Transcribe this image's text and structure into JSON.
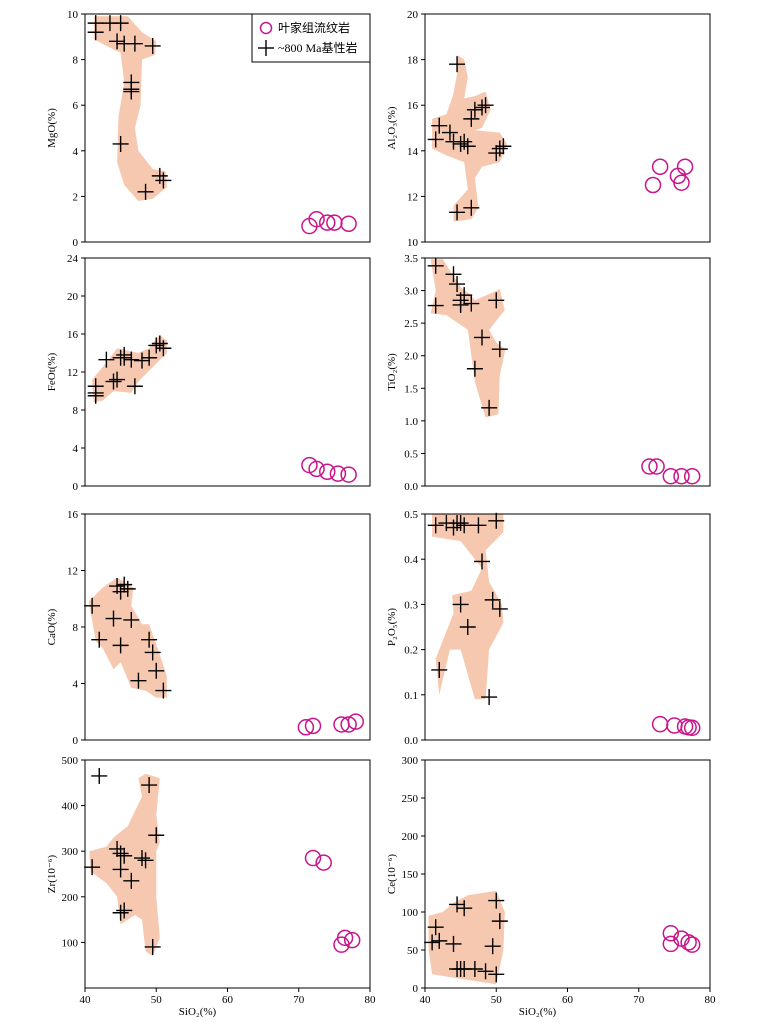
{
  "legend": {
    "felsic": "叶家组流纹岩",
    "mafic": "~800 Ma基性岩"
  },
  "colors": {
    "felsic": "#c9148c",
    "mafic": "#000000",
    "field": "#f7c8b0"
  },
  "chart_data": [
    {
      "type": "scatter",
      "ylabel": "MgO(%)",
      "xlim": [
        40,
        80
      ],
      "ylim": [
        0,
        10
      ],
      "xticks": [],
      "yticks": [
        0,
        2,
        4,
        6,
        8,
        10
      ],
      "series": [
        {
          "name": "~800 Ma基性岩",
          "marker": "plus",
          "x": [
            41.5,
            41.5,
            43.5,
            44.5,
            45.0,
            45.0,
            45.5,
            46.5,
            46.5,
            46.5,
            47.0,
            48.5,
            49.5,
            50.5,
            51.0
          ],
          "y": [
            9.6,
            9.2,
            9.6,
            8.8,
            9.6,
            4.3,
            8.7,
            6.6,
            7.0,
            6.7,
            8.7,
            2.2,
            8.6,
            2.9,
            2.7
          ]
        },
        {
          "name": "叶家组流纹岩",
          "marker": "circle",
          "x": [
            71.5,
            72.5,
            74.0,
            75.0,
            77.0
          ],
          "y": [
            0.7,
            1.0,
            0.85,
            0.85,
            0.8
          ]
        }
      ]
    },
    {
      "type": "scatter",
      "ylabel": "Al₂O₃(%)",
      "xlim": [
        40,
        80
      ],
      "ylim": [
        10,
        20
      ],
      "xticks": [],
      "yticks": [
        10,
        12,
        14,
        16,
        18,
        20
      ],
      "series": [
        {
          "name": "~800 Ma基性岩",
          "marker": "plus",
          "x": [
            41.5,
            42.0,
            43.5,
            44.0,
            44.5,
            44.5,
            45.0,
            45.5,
            46.0,
            46.5,
            46.5,
            47.0,
            48.0,
            48.5,
            50.0,
            50.5,
            51.0
          ],
          "y": [
            14.5,
            15.1,
            14.8,
            14.4,
            11.3,
            17.8,
            14.3,
            14.4,
            14.2,
            11.5,
            15.4,
            15.8,
            15.9,
            16.0,
            13.9,
            14.1,
            14.2
          ]
        },
        {
          "name": "叶家组流纹岩",
          "marker": "circle",
          "x": [
            72.0,
            73.0,
            75.5,
            76.0,
            76.5
          ],
          "y": [
            12.5,
            13.3,
            12.9,
            12.6,
            13.3
          ]
        }
      ]
    },
    {
      "type": "scatter",
      "ylabel": "FeOt(%)",
      "xlim": [
        40,
        80
      ],
      "ylim": [
        0,
        24
      ],
      "xticks": [],
      "yticks": [
        0,
        4,
        8,
        12,
        16,
        20,
        24
      ],
      "series": [
        {
          "name": "~800 Ma基性岩",
          "marker": "plus",
          "x": [
            41.5,
            41.5,
            41.5,
            43.0,
            44.0,
            44.5,
            45.0,
            45.5,
            45.5,
            46.5,
            47.0,
            48.0,
            49.0,
            50.0,
            50.5,
            51.0
          ],
          "y": [
            10.5,
            9.8,
            9.5,
            13.3,
            11.0,
            11.2,
            13.5,
            13.8,
            13.5,
            13.3,
            10.5,
            13.2,
            13.5,
            14.8,
            15.0,
            14.5
          ]
        },
        {
          "name": "叶家组流纹岩",
          "marker": "circle",
          "x": [
            71.5,
            72.5,
            74.0,
            75.5,
            77.0
          ],
          "y": [
            2.2,
            1.8,
            1.5,
            1.3,
            1.2
          ]
        }
      ]
    },
    {
      "type": "scatter",
      "ylabel": "TiO₂(%)",
      "xlim": [
        40,
        80
      ],
      "ylim": [
        0.0,
        3.5
      ],
      "xticks": [],
      "yticks": [
        0.0,
        0.5,
        1.0,
        1.5,
        2.0,
        2.5,
        3.0,
        3.5
      ],
      "series": [
        {
          "name": "~800 Ma基性岩",
          "marker": "plus",
          "x": [
            41.5,
            41.5,
            44.0,
            44.5,
            45.0,
            45.0,
            45.5,
            46.5,
            47.0,
            48.0,
            49.0,
            50.0,
            50.5
          ],
          "y": [
            3.38,
            2.77,
            3.25,
            3.1,
            2.85,
            2.78,
            2.93,
            2.8,
            1.8,
            2.28,
            1.2,
            2.85,
            2.1
          ]
        },
        {
          "name": "叶家组流纹岩",
          "marker": "circle",
          "x": [
            71.5,
            72.5,
            74.5,
            76.0,
            77.5
          ],
          "y": [
            0.3,
            0.3,
            0.15,
            0.15,
            0.15
          ]
        }
      ]
    },
    {
      "type": "scatter",
      "ylabel": "CaO(%)",
      "xlim": [
        40,
        80
      ],
      "ylim": [
        0,
        16
      ],
      "xticks": [],
      "yticks": [
        0,
        4,
        8,
        12,
        16
      ],
      "series": [
        {
          "name": "~800 Ma基性岩",
          "marker": "plus",
          "x": [
            41.0,
            42.0,
            44.0,
            44.5,
            45.0,
            45.0,
            45.5,
            46.0,
            46.5,
            47.5,
            49.0,
            49.5,
            50.0,
            51.0
          ],
          "y": [
            9.5,
            7.1,
            8.6,
            10.9,
            6.7,
            10.5,
            11.0,
            10.7,
            8.5,
            4.2,
            7.1,
            6.2,
            4.9,
            3.5
          ]
        },
        {
          "name": "叶家组流纹岩",
          "marker": "circle",
          "x": [
            71.0,
            72.0,
            76.0,
            77.0,
            78.0
          ],
          "y": [
            0.9,
            1.0,
            1.1,
            1.1,
            1.3
          ]
        }
      ]
    },
    {
      "type": "scatter",
      "ylabel": "P₂O₅(%)",
      "xlim": [
        40,
        80
      ],
      "ylim": [
        0.0,
        0.5
      ],
      "xticks": [],
      "yticks": [
        0.0,
        0.1,
        0.2,
        0.3,
        0.4,
        0.5
      ],
      "series": [
        {
          "name": "~800 Ma基性岩",
          "marker": "plus",
          "x": [
            41.5,
            42.0,
            43.0,
            44.0,
            44.5,
            45.0,
            45.0,
            45.5,
            46.0,
            47.5,
            48.0,
            49.0,
            49.5,
            50.0,
            50.5
          ],
          "y": [
            0.475,
            0.155,
            0.48,
            0.47,
            0.48,
            0.3,
            0.48,
            0.475,
            0.25,
            0.475,
            0.395,
            0.095,
            0.31,
            0.485,
            0.29
          ]
        },
        {
          "name": "叶家组流纹岩",
          "marker": "circle",
          "x": [
            73.0,
            75.0,
            76.5,
            77.0,
            77.5
          ],
          "y": [
            0.035,
            0.032,
            0.03,
            0.028,
            0.027
          ]
        }
      ]
    },
    {
      "type": "scatter",
      "ylabel": "Zr(10⁻⁶)",
      "xlabel": "SiO₂(%)",
      "xlim": [
        40,
        80
      ],
      "ylim": [
        0,
        500
      ],
      "xticks": [
        40,
        50,
        60,
        70,
        80
      ],
      "yticks": [
        100,
        200,
        300,
        400,
        500
      ],
      "series": [
        {
          "name": "~800 Ma基性岩",
          "marker": "plus",
          "x": [
            41.0,
            42.0,
            44.5,
            45.0,
            45.0,
            45.0,
            45.5,
            45.5,
            46.5,
            48.0,
            48.5,
            49.0,
            49.5,
            50.0
          ],
          "y": [
            265,
            465,
            305,
            295,
            260,
            165,
            290,
            170,
            235,
            285,
            280,
            445,
            90,
            335
          ]
        },
        {
          "name": "叶家组流纹岩",
          "marker": "circle",
          "x": [
            72.0,
            73.5,
            76.0,
            76.5,
            77.5
          ],
          "y": [
            285,
            275,
            95,
            110,
            105
          ]
        }
      ]
    },
    {
      "type": "scatter",
      "ylabel": "Ce(10⁻⁶)",
      "xlabel": "SiO₂(%)",
      "xlim": [
        40,
        80
      ],
      "ylim": [
        0,
        300
      ],
      "xticks": [
        40,
        50,
        60,
        70,
        80
      ],
      "yticks": [
        0,
        50,
        100,
        150,
        200,
        250,
        300
      ],
      "series": [
        {
          "name": "~800 Ma基性岩",
          "marker": "plus",
          "x": [
            41.0,
            41.5,
            42.0,
            44.0,
            44.5,
            44.5,
            45.0,
            45.5,
            45.5,
            47.0,
            48.5,
            49.5,
            50.0,
            50.0,
            50.5
          ],
          "y": [
            60,
            80,
            62,
            58,
            25,
            110,
            25,
            105,
            25,
            25,
            22,
            55,
            115,
            18,
            88
          ]
        },
        {
          "name": "叶家组流纹岩",
          "marker": "circle",
          "x": [
            74.5,
            74.5,
            76.0,
            77.0,
            77.5
          ],
          "y": [
            72,
            58,
            65,
            60,
            57
          ]
        }
      ]
    }
  ]
}
